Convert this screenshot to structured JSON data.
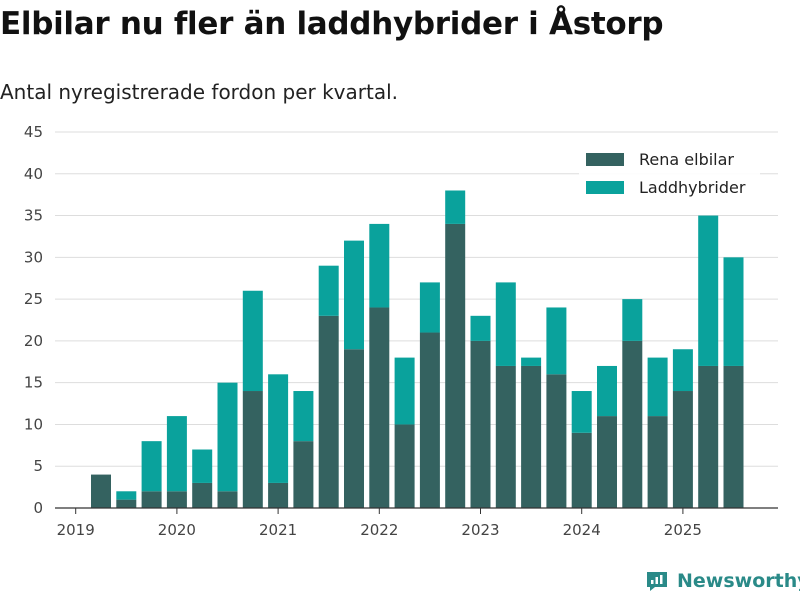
{
  "header": {
    "title": "Elbilar nu fler än laddhybrider i Åstorp",
    "subtitle": "Antal nyregistrerade fordon per kvartal."
  },
  "brand": {
    "name": "Newsworthy",
    "color": "#2a8a88"
  },
  "colors": {
    "series0": "#346260",
    "series1": "#0aa29c",
    "grid": "#dddddd",
    "axis": "#333333"
  },
  "chart_data": {
    "type": "bar",
    "stacked": true,
    "title": "Elbilar nu fler än laddhybrider i Åstorp",
    "subtitle": "Antal nyregistrerade fordon per kvartal.",
    "xlabel": "",
    "ylabel": "",
    "ylim": [
      0,
      45
    ],
    "yticks": [
      0,
      5,
      10,
      15,
      20,
      25,
      30,
      35,
      40,
      45
    ],
    "xticks": [
      "2019",
      "2020",
      "2021",
      "2022",
      "2023",
      "2024",
      "2025"
    ],
    "legend_position": "top-right",
    "categories": [
      "2019 Q2",
      "2019 Q3",
      "2019 Q4",
      "2020 Q1",
      "2020 Q2",
      "2020 Q3",
      "2020 Q4",
      "2021 Q1",
      "2021 Q2",
      "2021 Q3",
      "2021 Q4",
      "2022 Q1",
      "2022 Q2",
      "2022 Q3",
      "2022 Q4",
      "2023 Q1",
      "2023 Q2",
      "2023 Q3",
      "2023 Q4",
      "2024 Q1",
      "2024 Q2",
      "2024 Q3",
      "2024 Q4",
      "2025 Q1",
      "2025 Q2",
      "2025 Q3"
    ],
    "series": [
      {
        "name": "Rena elbilar",
        "values": [
          4,
          1,
          2,
          2,
          3,
          2,
          14,
          3,
          8,
          23,
          19,
          24,
          10,
          21,
          34,
          20,
          17,
          17,
          16,
          9,
          11,
          20,
          11,
          14,
          17,
          17
        ]
      },
      {
        "name": "Laddhybrider",
        "values": [
          0,
          1,
          6,
          9,
          4,
          13,
          12,
          13,
          6,
          6,
          13,
          10,
          8,
          6,
          4,
          3,
          10,
          1,
          8,
          5,
          6,
          5,
          7,
          5,
          18,
          13
        ]
      }
    ]
  }
}
